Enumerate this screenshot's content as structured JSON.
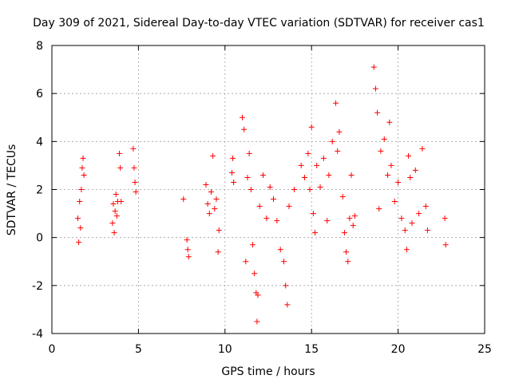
{
  "chart_data": {
    "type": "scatter",
    "title": "Day 309 of 2021, Sidereal Day-to-day VTEC variation (SDTVAR) for receiver cas1",
    "xlabel": "GPS time / hours",
    "ylabel": "SDTVAR / TECUs",
    "xlim": [
      0,
      25
    ],
    "ylim": [
      -4,
      8
    ],
    "xticks": [
      0,
      5,
      10,
      15,
      20,
      25
    ],
    "yticks": [
      -4,
      -2,
      0,
      2,
      4,
      6,
      8
    ],
    "grid": true,
    "marker": "+",
    "series_color": "#ff0000",
    "series": [
      {
        "name": "SDTVAR",
        "points": [
          [
            1.5,
            0.8
          ],
          [
            1.55,
            -0.2
          ],
          [
            1.6,
            1.5
          ],
          [
            1.65,
            0.4
          ],
          [
            1.7,
            2.0
          ],
          [
            1.75,
            2.9
          ],
          [
            1.8,
            3.3
          ],
          [
            1.85,
            2.6
          ],
          [
            3.5,
            0.6
          ],
          [
            3.55,
            1.4
          ],
          [
            3.6,
            0.2
          ],
          [
            3.65,
            1.1
          ],
          [
            3.7,
            1.8
          ],
          [
            3.75,
            0.9
          ],
          [
            3.8,
            1.5
          ],
          [
            3.9,
            3.5
          ],
          [
            3.95,
            2.9
          ],
          [
            4.0,
            1.5
          ],
          [
            4.7,
            3.7
          ],
          [
            4.75,
            2.9
          ],
          [
            4.8,
            2.3
          ],
          [
            4.85,
            1.9
          ],
          [
            7.6,
            1.6
          ],
          [
            7.8,
            -0.1
          ],
          [
            7.85,
            -0.5
          ],
          [
            7.9,
            -0.8
          ],
          [
            8.9,
            2.2
          ],
          [
            9.0,
            1.4
          ],
          [
            9.1,
            1.0
          ],
          [
            9.2,
            1.9
          ],
          [
            9.3,
            3.4
          ],
          [
            9.4,
            1.2
          ],
          [
            9.5,
            1.6
          ],
          [
            9.6,
            -0.6
          ],
          [
            9.65,
            0.3
          ],
          [
            10.4,
            2.7
          ],
          [
            10.45,
            3.3
          ],
          [
            10.5,
            2.3
          ],
          [
            11.0,
            5.0
          ],
          [
            11.1,
            4.5
          ],
          [
            11.2,
            -1.0
          ],
          [
            11.3,
            2.5
          ],
          [
            11.4,
            3.5
          ],
          [
            11.5,
            2.0
          ],
          [
            11.6,
            -0.3
          ],
          [
            11.7,
            -1.5
          ],
          [
            11.8,
            -2.3
          ],
          [
            11.85,
            -3.5
          ],
          [
            11.9,
            -2.4
          ],
          [
            12.0,
            1.3
          ],
          [
            12.2,
            2.6
          ],
          [
            12.4,
            0.8
          ],
          [
            12.6,
            2.1
          ],
          [
            12.8,
            1.6
          ],
          [
            13.0,
            0.7
          ],
          [
            13.2,
            -0.5
          ],
          [
            13.4,
            -1.0
          ],
          [
            13.5,
            -2.0
          ],
          [
            13.6,
            -2.8
          ],
          [
            13.7,
            1.3
          ],
          [
            14.0,
            2.0
          ],
          [
            14.4,
            3.0
          ],
          [
            14.6,
            2.5
          ],
          [
            14.8,
            3.5
          ],
          [
            14.9,
            2.0
          ],
          [
            15.0,
            4.6
          ],
          [
            15.1,
            1.0
          ],
          [
            15.2,
            0.2
          ],
          [
            15.3,
            3.0
          ],
          [
            15.5,
            2.1
          ],
          [
            15.7,
            3.3
          ],
          [
            15.9,
            0.7
          ],
          [
            16.0,
            2.6
          ],
          [
            16.2,
            4.0
          ],
          [
            16.4,
            5.6
          ],
          [
            16.5,
            3.6
          ],
          [
            16.6,
            4.4
          ],
          [
            16.8,
            1.7
          ],
          [
            16.9,
            0.2
          ],
          [
            17.0,
            -0.6
          ],
          [
            17.1,
            -1.0
          ],
          [
            17.2,
            0.8
          ],
          [
            17.3,
            2.6
          ],
          [
            17.4,
            0.5
          ],
          [
            17.5,
            0.9
          ],
          [
            18.6,
            7.1
          ],
          [
            18.7,
            6.2
          ],
          [
            18.8,
            5.2
          ],
          [
            18.9,
            1.2
          ],
          [
            19.0,
            3.6
          ],
          [
            19.2,
            4.1
          ],
          [
            19.4,
            2.6
          ],
          [
            19.5,
            4.8
          ],
          [
            19.6,
            3.0
          ],
          [
            19.8,
            1.5
          ],
          [
            20.0,
            2.3
          ],
          [
            20.2,
            0.8
          ],
          [
            20.4,
            0.3
          ],
          [
            20.5,
            -0.5
          ],
          [
            20.6,
            3.4
          ],
          [
            20.7,
            2.5
          ],
          [
            20.8,
            0.6
          ],
          [
            21.0,
            2.8
          ],
          [
            21.2,
            1.0
          ],
          [
            21.4,
            3.7
          ],
          [
            21.6,
            1.3
          ],
          [
            21.7,
            0.3
          ],
          [
            22.7,
            0.8
          ],
          [
            22.75,
            -0.3
          ]
        ]
      }
    ]
  }
}
